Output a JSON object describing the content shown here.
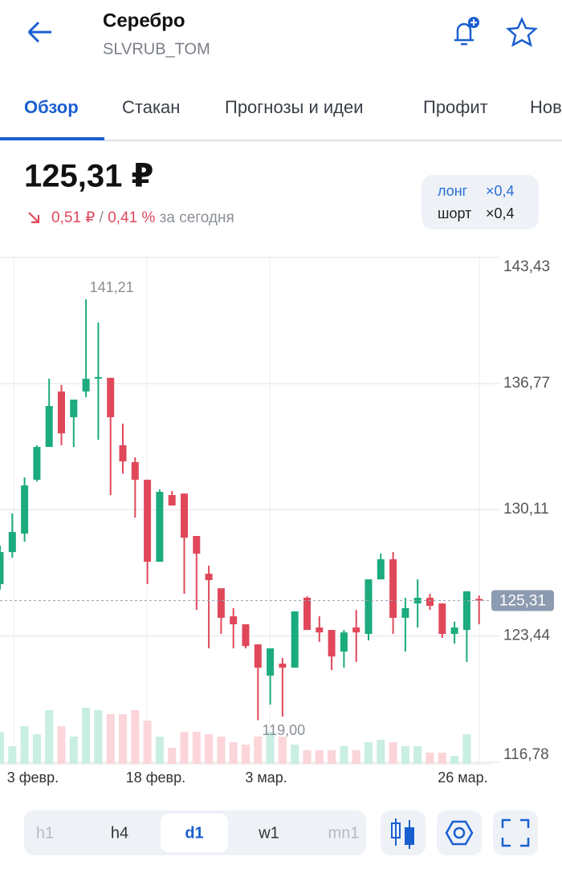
{
  "header": {
    "title": "Серебро",
    "ticker": "SLVRUB_TOM"
  },
  "tabs": [
    "Обзор",
    "Стакан",
    "Прогнозы и идеи",
    "Профит",
    "Нов"
  ],
  "price": {
    "value": "125,31 ₽",
    "change": "0,51 ₽",
    "separator": "/",
    "change_pct": "0,41 %",
    "period": "за сегодня"
  },
  "leverage": {
    "long_label": "лонг",
    "long": "×0,4",
    "short_label": "шорт",
    "short": "×0,4"
  },
  "chart_data": {
    "type": "candlestick",
    "categories": [
      null,
      null,
      null,
      "3 февр.",
      null,
      null,
      null,
      null,
      null,
      null,
      null,
      null,
      null,
      "18 февр.",
      null,
      null,
      null,
      null,
      null,
      null,
      null,
      null,
      "3 мар.",
      null,
      null,
      null,
      null,
      null,
      null,
      null,
      null,
      null,
      null,
      null,
      null,
      null,
      null,
      null,
      "26 мар.",
      null
    ],
    "open": [
      126.18,
      127.87,
      128.85,
      131.69,
      133.42,
      136.35,
      134.99,
      136.35,
      137.07,
      137.07,
      133.51,
      132.62,
      131.69,
      127.36,
      130.88,
      130.96,
      128.72,
      126.73,
      125.96,
      124.48,
      124.06,
      123.0,
      121.35,
      121.98,
      121.77,
      125.46,
      123.89,
      123.76,
      122.62,
      123.89,
      123.55,
      126.43,
      127.49,
      124.4,
      125.16,
      125.46,
      125.16,
      123.55,
      123.76,
      125.4
    ],
    "high": [
      128.21,
      129.91,
      131.81,
      133.51,
      137.02,
      136.69,
      135.92,
      141.21,
      139.99,
      137.07,
      134.65,
      132.87,
      131.69,
      131.18,
      131.09,
      130.96,
      128.72,
      127.15,
      125.96,
      124.91,
      124.06,
      123.0,
      122.79,
      122.28,
      124.74,
      125.54,
      124.48,
      123.76,
      123.76,
      124.82,
      126.43,
      127.79,
      127.87,
      125.46,
      126.43,
      125.67,
      125.16,
      124.2,
      125.8,
      125.58
    ],
    "low": [
      125.88,
      127.58,
      128.42,
      131.6,
      133.42,
      133.51,
      133.42,
      136.05,
      133.8,
      130.88,
      132.02,
      129.69,
      126.18,
      127.36,
      130.33,
      125.67,
      124.82,
      122.79,
      123.55,
      122.79,
      122.79,
      119.0,
      119.82,
      119.19,
      121.77,
      123.76,
      123.13,
      121.64,
      121.77,
      122.07,
      123.21,
      126.43,
      123.55,
      122.62,
      123.89,
      124.82,
      123.34,
      123.04,
      122.07,
      124.06
    ],
    "close": [
      127.87,
      128.93,
      131.39,
      133.42,
      135.58,
      134.14,
      135.92,
      137.02,
      137.11,
      134.99,
      132.66,
      131.69,
      127.36,
      131.05,
      130.33,
      128.63,
      127.79,
      126.39,
      124.4,
      124.06,
      122.91,
      121.77,
      122.79,
      121.77,
      124.74,
      123.76,
      123.63,
      122.36,
      123.63,
      123.63,
      126.43,
      127.49,
      124.4,
      124.91,
      125.46,
      125.03,
      123.55,
      123.89,
      125.8,
      125.31
    ],
    "volume": [
      40,
      22,
      47,
      37,
      67,
      47,
      34,
      70,
      67,
      62,
      62,
      67,
      54,
      34,
      20,
      40,
      40,
      37,
      34,
      27,
      24,
      34,
      40,
      34,
      24,
      17,
      17,
      17,
      22,
      17,
      27,
      30,
      27,
      22,
      22,
      14,
      14,
      10,
      37,
      null
    ],
    "ylim": [
      116.69,
      143.46
    ],
    "yticks": [
      {
        "value": 143.43,
        "label": "143,43"
      },
      {
        "value": 136.77,
        "label": "136,77"
      },
      {
        "value": 130.11,
        "label": "130,11"
      },
      {
        "value": 123.44,
        "label": "123,44"
      },
      {
        "value": 116.78,
        "label": "116,78"
      }
    ],
    "annotations": [
      {
        "value": 141.21,
        "label": "141,21"
      },
      {
        "value": 119.0,
        "label": "119,00"
      }
    ],
    "last_price": {
      "value": 125.31,
      "label": "125,31"
    },
    "up_color": "#1bab7f",
    "down_color": "#e0485a",
    "up_volume_color": "#c9eee2",
    "down_volume_color": "#fbd5d9",
    "grid": true
  },
  "timeframes": [
    "h1",
    "h4",
    "d1",
    "w1",
    "mn1"
  ],
  "active_timeframe": 2
}
